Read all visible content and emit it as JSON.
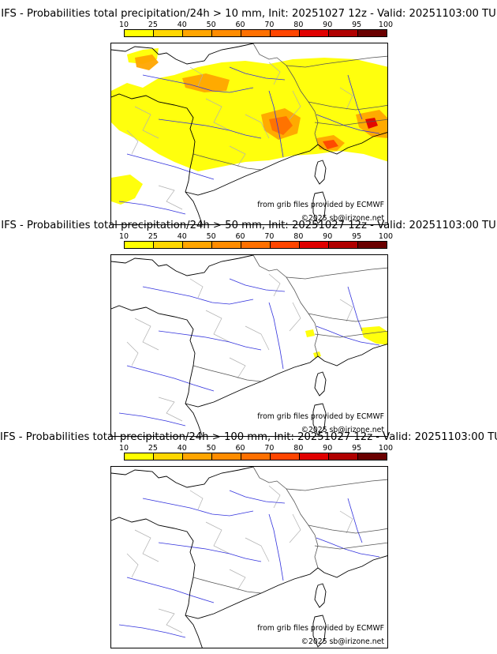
{
  "colorbar": {
    "ticks": [
      "10",
      "25",
      "40",
      "50",
      "60",
      "70",
      "80",
      "90",
      "95",
      "100"
    ],
    "colors": [
      "#ffff00",
      "#ffd700",
      "#ffa500",
      "#ff8c00",
      "#ff7000",
      "#ff4500",
      "#e00000",
      "#b00000",
      "#6a0000"
    ]
  },
  "panels": [
    {
      "title": "IFS - Probabilities total precipitation/24h > 10 mm, Init: 20251027 12z - Valid: 20251103:00 TU",
      "threshold_mm": 10,
      "coverage": "extensive"
    },
    {
      "title": "IFS - Probabilities total precipitation/24h > 50 mm, Init: 20251027 12z - Valid: 20251103:00 TU",
      "threshold_mm": 50,
      "coverage": "isolated"
    },
    {
      "title": "IFS - Probabilities total precipitation/24h > 100 mm, Init: 20251027 12z - Valid: 20251103:00 TU",
      "threshold_mm": 100,
      "coverage": "none"
    }
  ],
  "credits": {
    "source": "from grib files provided by ECMWF",
    "copyright": "©2025 sb@irizone.net"
  }
}
